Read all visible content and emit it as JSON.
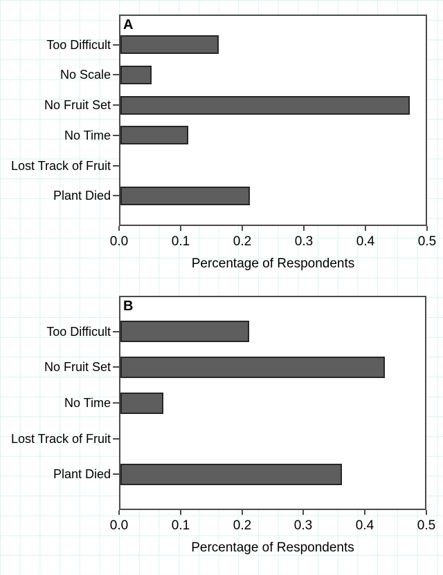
{
  "background": {
    "grid_color": "#d8f5f1",
    "page_color": "#ffffff"
  },
  "colors": {
    "bar_fill": "#5e5e5e",
    "bar_border": "#262626",
    "axis": "#4a4a4a",
    "text": "#000000"
  },
  "chart_data": [
    {
      "type": "bar",
      "orientation": "horizontal",
      "panel_label": "A",
      "categories": [
        "Too Difficult",
        "No Scale",
        "No Fruit Set",
        "No Time",
        "Lost Track of Fruit",
        "Plant Died"
      ],
      "values": [
        0.16,
        0.05,
        0.47,
        0.11,
        0.0,
        0.21
      ],
      "title": "",
      "xlabel": "Percentage of Respondents",
      "ylabel": "",
      "xlim": [
        0.0,
        0.5
      ],
      "xticks": [
        "0.0",
        "0.1",
        "0.2",
        "0.3",
        "0.4",
        "0.5"
      ],
      "grid": false,
      "legend": null
    },
    {
      "type": "bar",
      "orientation": "horizontal",
      "panel_label": "B",
      "categories": [
        "Too Difficult",
        "No Fruit Set",
        "No Time",
        "Lost Track of Fruit",
        "Plant Died"
      ],
      "values": [
        0.21,
        0.43,
        0.07,
        0.0,
        0.36
      ],
      "title": "",
      "xlabel": "Percentage of Respondents",
      "ylabel": "",
      "xlim": [
        0.0,
        0.5
      ],
      "xticks": [
        "0.0",
        "0.1",
        "0.2",
        "0.3",
        "0.4",
        "0.5"
      ],
      "grid": false,
      "legend": null
    }
  ]
}
